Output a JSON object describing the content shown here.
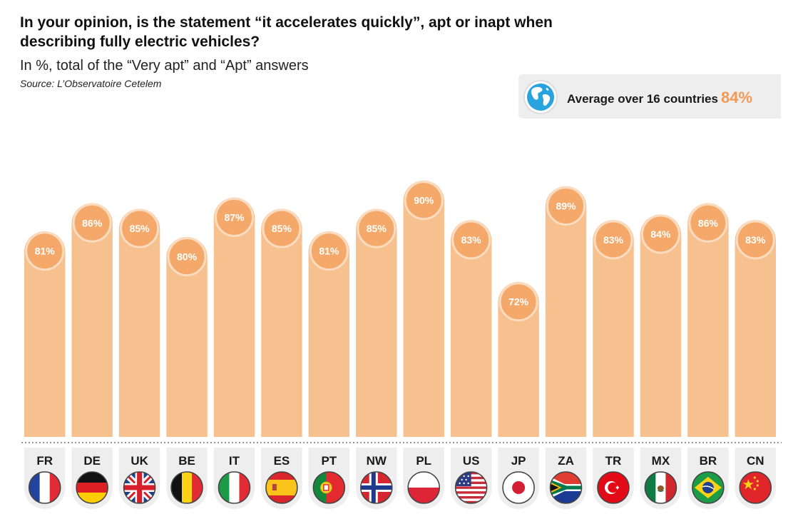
{
  "title": "In your opinion, is the statement “it accelerates quickly”, apt or inapt when describing fully electric vehicles?",
  "subtitle": "In %, total of the “Very apt” and “Apt” answers",
  "source": "Source: L’Observatoire Cetelem",
  "average": {
    "label": "Average over 16 countries",
    "value": "84%",
    "icon": "globe-icon"
  },
  "colors": {
    "bar": "#f7c08f",
    "bubble": "#f4a96a",
    "accent": "#f29a55",
    "panel": "#eeeeee"
  },
  "chart_data": {
    "type": "bar",
    "title": "In your opinion, is the statement “it accelerates quickly”, apt or inapt when describing fully electric vehicles?",
    "xlabel": "",
    "ylabel": "",
    "unit": "%",
    "ylim": [
      0,
      100
    ],
    "grid": false,
    "categories": [
      "FR",
      "DE",
      "UK",
      "BE",
      "IT",
      "ES",
      "PT",
      "NW",
      "PL",
      "US",
      "JP",
      "ZA",
      "TR",
      "MX",
      "BR",
      "CN"
    ],
    "values": [
      81,
      86,
      85,
      80,
      87,
      85,
      81,
      85,
      90,
      83,
      72,
      89,
      83,
      84,
      86,
      83
    ],
    "data_labels": [
      "81%",
      "86%",
      "85%",
      "80%",
      "87%",
      "85%",
      "81%",
      "85%",
      "90%",
      "83%",
      "72%",
      "89%",
      "83%",
      "84%",
      "86%",
      "83%"
    ],
    "flags": [
      "france-flag-icon",
      "germany-flag-icon",
      "uk-flag-icon",
      "belgium-flag-icon",
      "italy-flag-icon",
      "spain-flag-icon",
      "portugal-flag-icon",
      "norway-flag-icon",
      "poland-flag-icon",
      "usa-flag-icon",
      "japan-flag-icon",
      "south-africa-flag-icon",
      "turkey-flag-icon",
      "mexico-flag-icon",
      "brazil-flag-icon",
      "china-flag-icon"
    ]
  }
}
